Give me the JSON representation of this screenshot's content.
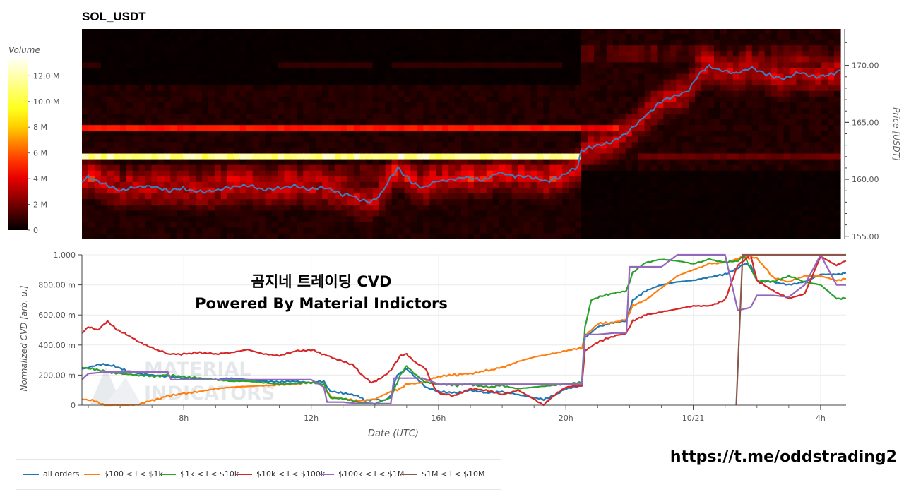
{
  "header": {
    "symbol": "SOL_USDT",
    "overlay_line1": "곰지네 트레이딩 CVD",
    "overlay_line2": "Powered By Material Indictors",
    "watermark_line1": "MATERIAL",
    "watermark_line2": "INDICATORS",
    "url": "https://t.me/oddstrading2"
  },
  "chart_data": [
    {
      "type": "heatmap",
      "colorbar": {
        "label": "Volume",
        "ticks": [
          "0",
          "2 M",
          "4 M",
          "6 M",
          "8 M",
          "10.0 M",
          "12.0 M"
        ],
        "tick_values": [
          0,
          2,
          4,
          6,
          8,
          10,
          12
        ],
        "range": [
          0,
          13.5
        ]
      },
      "ylabel": "Price [USDT]",
      "y_ticks": [
        "155.00",
        "160.00",
        "165.00",
        "170.00"
      ],
      "y_tick_values": [
        155,
        160,
        165,
        170
      ],
      "ylim": [
        154.8,
        173.2
      ],
      "x_range_hours": [
        4.8,
        28.8
      ],
      "price_line": {
        "color": "#3a7fc0",
        "x": [
          4.8,
          5.0,
          5.5,
          6.0,
          6.5,
          7.0,
          7.5,
          8.0,
          8.5,
          9.0,
          9.5,
          10.0,
          10.5,
          11.0,
          11.5,
          12.0,
          12.5,
          13.0,
          13.3,
          13.6,
          13.9,
          14.2,
          14.4,
          14.6,
          14.8,
          15.0,
          15.3,
          15.6,
          16.0,
          16.5,
          17.0,
          17.5,
          18.0,
          18.5,
          19.0,
          19.5,
          20.0,
          20.5,
          20.6,
          21.0,
          21.5,
          22.0,
          22.4,
          22.8,
          23.2,
          23.6,
          24.0,
          24.3,
          24.6,
          25.0,
          25.5,
          26.0,
          26.5,
          27.0,
          27.5,
          28.0,
          28.5,
          28.8
        ],
        "y": [
          159.8,
          160.2,
          159.6,
          159.0,
          159.3,
          159.4,
          159.0,
          159.2,
          158.9,
          159.0,
          159.3,
          159.5,
          159.1,
          159.2,
          159.4,
          159.1,
          159.3,
          158.7,
          158.6,
          158.2,
          158.0,
          158.5,
          159.3,
          160.3,
          161.0,
          160.4,
          159.6,
          159.3,
          159.8,
          160.0,
          160.2,
          159.9,
          160.6,
          160.3,
          160.2,
          159.8,
          160.3,
          161.2,
          162.5,
          162.9,
          163.2,
          164.0,
          165.0,
          166.0,
          167.0,
          167.3,
          167.8,
          169.2,
          169.9,
          169.6,
          169.3,
          169.8,
          169.2,
          168.8,
          169.4,
          169.0,
          169.2,
          169.6
        ]
      }
    },
    {
      "type": "line",
      "xlabel": "Date (UTC)",
      "ylabel": "Normalized CVD [arb. u.]",
      "x_ticks": [
        "8h",
        "12h",
        "16h",
        "20h",
        "10/21",
        "4h"
      ],
      "x_tick_values": [
        8,
        12,
        16,
        20,
        24,
        28
      ],
      "xlim": [
        4.8,
        28.8
      ],
      "y_ticks": [
        "0",
        "200.00 m",
        "400.00 m",
        "600.00 m",
        "800.00 m",
        "1.000"
      ],
      "y_tick_values": [
        0,
        0.2,
        0.4,
        0.6,
        0.8,
        1.0
      ],
      "ylim": [
        0,
        1.0
      ],
      "grid": true,
      "legend_position": "bottom",
      "series": [
        {
          "name": "all orders",
          "color": "#1f77b4",
          "x": [
            4.8,
            5.4,
            5.8,
            6.2,
            6.6,
            7.0,
            7.6,
            8.0,
            8.5,
            9.0,
            9.5,
            10.0,
            10.5,
            11.0,
            11.5,
            12.0,
            12.4,
            12.6,
            13.0,
            13.3,
            13.5,
            13.7,
            14.0,
            14.3,
            14.5,
            14.7,
            15.0,
            15.3,
            15.6,
            16.0,
            16.5,
            17.0,
            17.5,
            18.0,
            18.5,
            19.0,
            19.3,
            19.6,
            20.0,
            20.5,
            20.6,
            21.0,
            21.5,
            21.9,
            22.1,
            22.5,
            23.0,
            23.5,
            24.0,
            24.5,
            25.0,
            25.3,
            25.6,
            25.8,
            26.0,
            26.5,
            27.0,
            27.5,
            28.0,
            28.5,
            28.8
          ],
          "y": [
            0.24,
            0.27,
            0.26,
            0.23,
            0.21,
            0.2,
            0.19,
            0.18,
            0.175,
            0.17,
            0.18,
            0.17,
            0.16,
            0.155,
            0.16,
            0.15,
            0.16,
            0.09,
            0.08,
            0.07,
            0.06,
            0.03,
            0.04,
            0.03,
            0.06,
            0.2,
            0.24,
            0.18,
            0.12,
            0.09,
            0.08,
            0.1,
            0.08,
            0.09,
            0.07,
            0.05,
            0.04,
            0.06,
            0.11,
            0.13,
            0.45,
            0.52,
            0.55,
            0.56,
            0.7,
            0.76,
            0.8,
            0.82,
            0.83,
            0.85,
            0.87,
            0.9,
            0.94,
            0.93,
            0.83,
            0.82,
            0.8,
            0.82,
            0.87,
            0.87,
            0.88
          ]
        },
        {
          "name": "$100 < i < $1k",
          "color": "#ff7f0e",
          "x": [
            4.8,
            5.2,
            5.5,
            6.0,
            6.5,
            7.0,
            7.5,
            8.0,
            8.5,
            9.0,
            9.5,
            10.0,
            10.5,
            11.0,
            11.5,
            12.0,
            12.4,
            12.6,
            13.0,
            13.5,
            14.0,
            14.5,
            14.8,
            15.0,
            15.5,
            16.0,
            16.5,
            17.0,
            17.5,
            18.0,
            18.5,
            19.0,
            19.5,
            20.0,
            20.5,
            20.6,
            21.0,
            21.5,
            21.9,
            22.1,
            22.5,
            23.0,
            23.5,
            24.0,
            24.5,
            25.0,
            25.5,
            26.0,
            26.5,
            27.0,
            27.5,
            28.0,
            28.5,
            28.8
          ],
          "y": [
            0.04,
            0.03,
            0.0,
            0.0,
            0.0,
            0.03,
            0.06,
            0.08,
            0.09,
            0.11,
            0.12,
            0.125,
            0.13,
            0.135,
            0.14,
            0.15,
            0.14,
            0.06,
            0.04,
            0.03,
            0.04,
            0.09,
            0.11,
            0.14,
            0.15,
            0.19,
            0.2,
            0.21,
            0.23,
            0.25,
            0.29,
            0.32,
            0.34,
            0.36,
            0.38,
            0.46,
            0.54,
            0.55,
            0.57,
            0.66,
            0.7,
            0.78,
            0.86,
            0.9,
            0.94,
            0.95,
            0.98,
            0.98,
            0.85,
            0.82,
            0.86,
            0.86,
            0.83,
            0.84
          ]
        },
        {
          "name": "$1k < i < $10k",
          "color": "#2ca02c",
          "x": [
            4.8,
            5.2,
            5.6,
            6.0,
            6.5,
            7.0,
            7.5,
            8.0,
            8.5,
            9.0,
            9.5,
            10.0,
            10.5,
            11.0,
            11.5,
            12.0,
            12.4,
            12.6,
            13.0,
            13.5,
            14.0,
            14.5,
            14.8,
            15.0,
            15.3,
            15.6,
            16.0,
            16.5,
            17.0,
            17.5,
            18.0,
            18.5,
            19.0,
            19.5,
            20.0,
            20.5,
            20.6,
            20.8,
            21.2,
            21.6,
            21.9,
            22.1,
            22.5,
            23.0,
            23.5,
            24.0,
            24.5,
            25.0,
            25.4,
            25.6,
            26.0,
            26.5,
            27.0,
            27.5,
            28.0,
            28.5,
            28.8
          ],
          "y": [
            0.25,
            0.24,
            0.22,
            0.21,
            0.2,
            0.19,
            0.2,
            0.19,
            0.18,
            0.17,
            0.16,
            0.16,
            0.15,
            0.14,
            0.145,
            0.15,
            0.14,
            0.05,
            0.04,
            0.02,
            0.01,
            0.05,
            0.2,
            0.26,
            0.2,
            0.15,
            0.14,
            0.13,
            0.14,
            0.12,
            0.13,
            0.11,
            0.12,
            0.13,
            0.14,
            0.15,
            0.52,
            0.7,
            0.73,
            0.75,
            0.76,
            0.88,
            0.95,
            0.97,
            0.96,
            0.94,
            0.97,
            0.95,
            0.96,
            0.99,
            0.83,
            0.82,
            0.86,
            0.82,
            0.8,
            0.71,
            0.71
          ]
        },
        {
          "name": "$10k < i < $100k",
          "color": "#d62728",
          "x": [
            4.8,
            5.0,
            5.3,
            5.6,
            5.9,
            6.2,
            6.6,
            7.0,
            7.5,
            8.0,
            8.5,
            9.0,
            9.5,
            10.0,
            10.5,
            11.0,
            11.5,
            12.0,
            12.5,
            13.0,
            13.3,
            13.6,
            13.9,
            14.2,
            14.5,
            14.8,
            15.0,
            15.3,
            15.6,
            15.8,
            16.0,
            16.5,
            17.0,
            17.5,
            18.0,
            18.5,
            19.0,
            19.3,
            19.6,
            20.0,
            20.5,
            20.6,
            21.0,
            21.5,
            21.9,
            22.1,
            22.5,
            23.0,
            23.5,
            24.0,
            24.5,
            25.0,
            25.4,
            25.8,
            26.0,
            26.5,
            27.0,
            27.5,
            28.0,
            28.5,
            28.8
          ],
          "y": [
            0.48,
            0.52,
            0.5,
            0.56,
            0.5,
            0.47,
            0.42,
            0.38,
            0.34,
            0.34,
            0.35,
            0.34,
            0.35,
            0.37,
            0.34,
            0.33,
            0.36,
            0.37,
            0.33,
            0.29,
            0.27,
            0.2,
            0.15,
            0.18,
            0.23,
            0.33,
            0.34,
            0.28,
            0.24,
            0.14,
            0.08,
            0.06,
            0.11,
            0.1,
            0.07,
            0.1,
            0.04,
            0.0,
            0.06,
            0.12,
            0.13,
            0.36,
            0.42,
            0.46,
            0.48,
            0.56,
            0.6,
            0.62,
            0.64,
            0.66,
            0.66,
            0.7,
            0.93,
            1.0,
            0.83,
            0.76,
            0.71,
            0.74,
            0.99,
            0.93,
            0.96
          ]
        },
        {
          "name": "$100k < i < $1M",
          "color": "#9467bd",
          "x": [
            4.8,
            5.0,
            5.5,
            6.0,
            6.5,
            7.0,
            7.5,
            7.6,
            8.0,
            9.0,
            10.0,
            11.0,
            12.0,
            12.4,
            12.5,
            13.0,
            13.5,
            14.0,
            14.5,
            14.6,
            15.0,
            15.5,
            16.0,
            17.0,
            18.0,
            18.5,
            19.0,
            20.0,
            20.5,
            20.6,
            21.0,
            21.5,
            21.9,
            22.0,
            22.5,
            23.0,
            23.5,
            24.0,
            24.5,
            25.0,
            25.4,
            25.8,
            26.0,
            26.5,
            27.0,
            27.5,
            28.0,
            28.5,
            28.8
          ],
          "y": [
            0.17,
            0.21,
            0.22,
            0.22,
            0.22,
            0.22,
            0.22,
            0.17,
            0.17,
            0.17,
            0.17,
            0.17,
            0.17,
            0.12,
            0.02,
            0.02,
            0.01,
            0.01,
            0.01,
            0.18,
            0.18,
            0.18,
            0.14,
            0.14,
            0.14,
            0.14,
            0.14,
            0.14,
            0.14,
            0.47,
            0.47,
            0.48,
            0.48,
            0.92,
            0.92,
            0.92,
            1.0,
            1.0,
            1.0,
            1.0,
            0.63,
            0.65,
            0.73,
            0.73,
            0.72,
            0.8,
            1.0,
            0.8,
            0.8
          ]
        },
        {
          "name": "$1M < i < $10M",
          "color": "#8c564b",
          "x": [
            25.35,
            25.55,
            25.6,
            28.8
          ],
          "y": [
            0.0,
            1.0,
            1.0,
            1.0
          ]
        }
      ]
    }
  ]
}
